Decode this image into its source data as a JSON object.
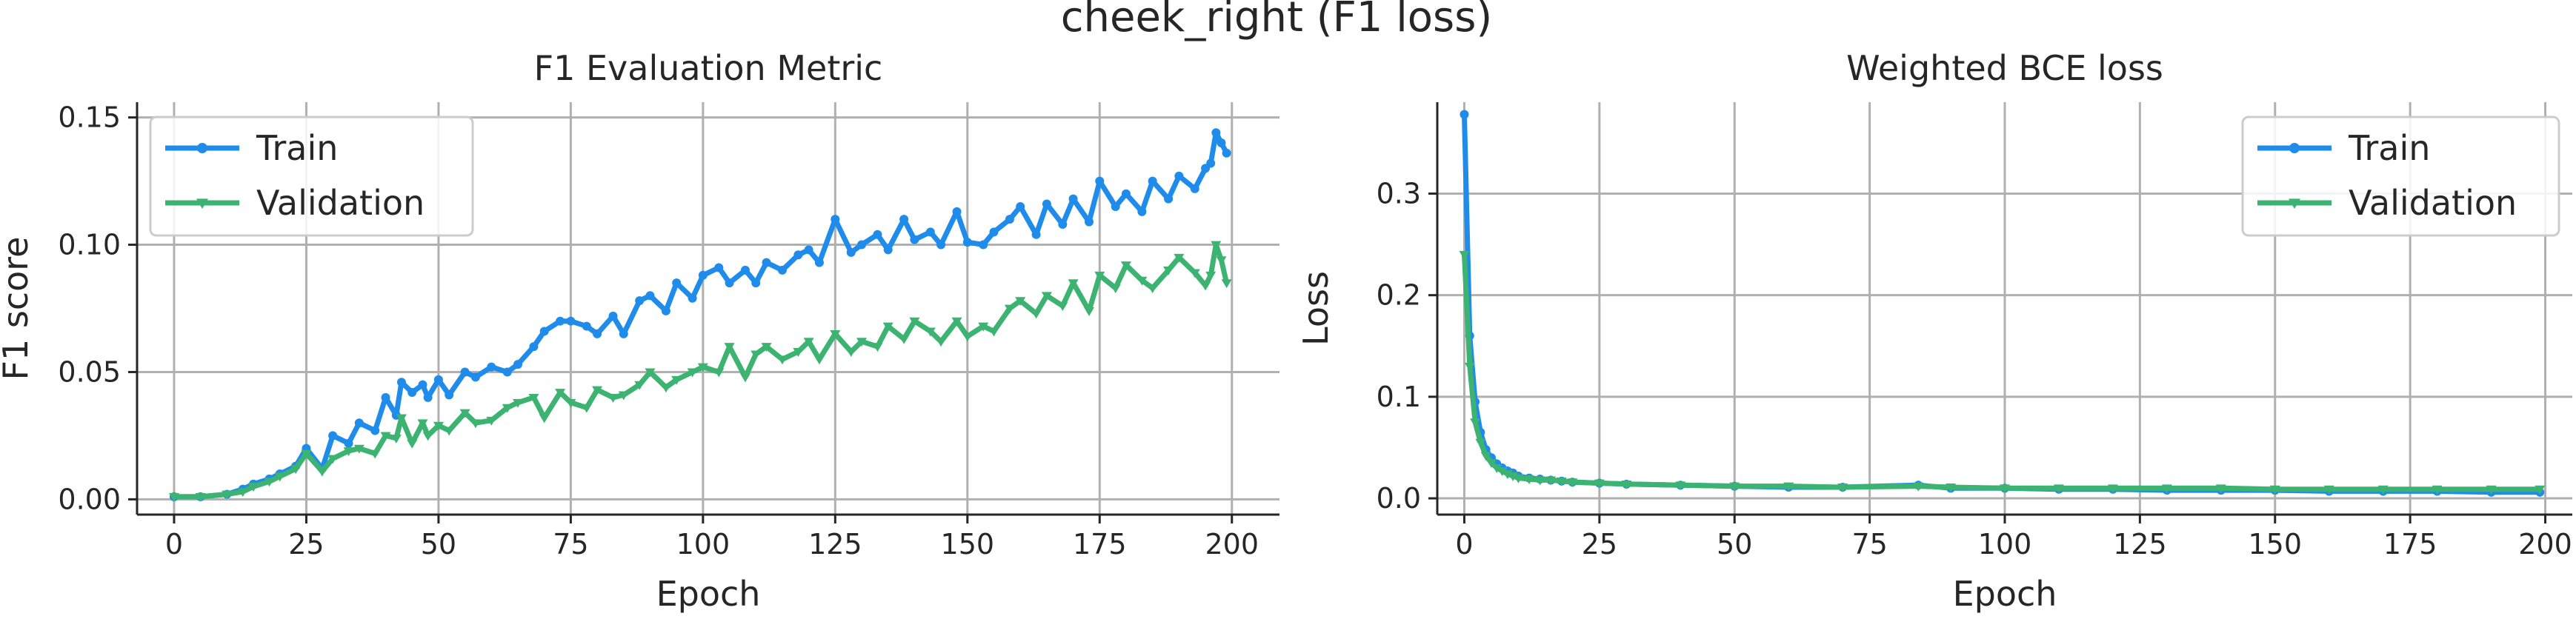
{
  "figure": {
    "suptitle": "cheek_right (F1 loss)"
  },
  "colors": {
    "train": "#1f8ceb",
    "validation": "#3cb371"
  },
  "chart_data": [
    {
      "type": "line",
      "title": "F1 Evaluation Metric",
      "xlabel": "Epoch",
      "ylabel": "F1 score",
      "xlim": [
        -7,
        209
      ],
      "ylim": [
        -0.006,
        0.156
      ],
      "xticks": [
        0,
        25,
        50,
        75,
        100,
        125,
        150,
        175,
        200
      ],
      "xtick_labels": [
        "0",
        "25",
        "50",
        "75",
        "100",
        "125",
        "150",
        "175",
        "200"
      ],
      "yticks": [
        0,
        0.05,
        0.1,
        0.15
      ],
      "ytick_labels": [
        "0.00",
        "0.05",
        "0.10",
        "0.15"
      ],
      "grid": true,
      "legend_loc": "upper-left",
      "series": [
        {
          "name": "Train",
          "marker": "circle",
          "x": [
            0,
            5,
            10,
            13,
            15,
            18,
            20,
            23,
            25,
            28,
            30,
            33,
            35,
            38,
            40,
            42,
            43,
            45,
            47,
            48,
            50,
            52,
            55,
            57,
            60,
            63,
            65,
            68,
            70,
            73,
            75,
            78,
            80,
            83,
            85,
            88,
            90,
            93,
            95,
            98,
            100,
            103,
            105,
            108,
            110,
            112,
            115,
            118,
            120,
            122,
            125,
            128,
            130,
            133,
            135,
            138,
            140,
            143,
            145,
            148,
            150,
            153,
            155,
            158,
            160,
            163,
            165,
            168,
            170,
            173,
            175,
            178,
            180,
            183,
            185,
            188,
            190,
            193,
            195,
            196,
            197,
            198,
            199
          ],
          "y": [
            0.001,
            0.001,
            0.002,
            0.004,
            0.006,
            0.008,
            0.01,
            0.013,
            0.02,
            0.012,
            0.025,
            0.022,
            0.03,
            0.027,
            0.04,
            0.033,
            0.046,
            0.042,
            0.045,
            0.04,
            0.047,
            0.041,
            0.05,
            0.048,
            0.052,
            0.05,
            0.053,
            0.06,
            0.066,
            0.07,
            0.07,
            0.068,
            0.065,
            0.072,
            0.065,
            0.078,
            0.08,
            0.074,
            0.085,
            0.079,
            0.088,
            0.091,
            0.085,
            0.09,
            0.085,
            0.093,
            0.09,
            0.096,
            0.098,
            0.093,
            0.11,
            0.097,
            0.1,
            0.104,
            0.098,
            0.11,
            0.102,
            0.105,
            0.1,
            0.113,
            0.101,
            0.1,
            0.105,
            0.11,
            0.115,
            0.104,
            0.116,
            0.108,
            0.118,
            0.109,
            0.125,
            0.115,
            0.12,
            0.113,
            0.125,
            0.118,
            0.127,
            0.122,
            0.13,
            0.132,
            0.144,
            0.14,
            0.136
          ]
        },
        {
          "name": "Validation",
          "marker": "tri_down",
          "x": [
            0,
            5,
            10,
            13,
            15,
            18,
            20,
            23,
            25,
            28,
            30,
            33,
            35,
            38,
            40,
            42,
            43,
            45,
            47,
            48,
            50,
            52,
            55,
            57,
            60,
            63,
            65,
            68,
            70,
            73,
            75,
            78,
            80,
            83,
            85,
            88,
            90,
            93,
            95,
            98,
            100,
            103,
            105,
            108,
            110,
            112,
            115,
            118,
            120,
            122,
            125,
            128,
            130,
            133,
            135,
            138,
            140,
            143,
            145,
            148,
            150,
            153,
            155,
            158,
            160,
            163,
            165,
            168,
            170,
            173,
            175,
            178,
            180,
            183,
            185,
            188,
            190,
            193,
            195,
            196,
            197,
            198,
            199
          ],
          "y": [
            0.001,
            0.001,
            0.002,
            0.003,
            0.005,
            0.007,
            0.009,
            0.012,
            0.018,
            0.011,
            0.016,
            0.019,
            0.02,
            0.018,
            0.025,
            0.024,
            0.032,
            0.022,
            0.03,
            0.025,
            0.029,
            0.027,
            0.034,
            0.03,
            0.031,
            0.036,
            0.038,
            0.04,
            0.032,
            0.042,
            0.038,
            0.036,
            0.043,
            0.04,
            0.041,
            0.045,
            0.05,
            0.044,
            0.047,
            0.05,
            0.052,
            0.05,
            0.06,
            0.048,
            0.057,
            0.06,
            0.055,
            0.058,
            0.062,
            0.055,
            0.065,
            0.058,
            0.062,
            0.06,
            0.068,
            0.063,
            0.07,
            0.066,
            0.062,
            0.07,
            0.064,
            0.068,
            0.066,
            0.075,
            0.078,
            0.073,
            0.08,
            0.076,
            0.085,
            0.074,
            0.088,
            0.083,
            0.092,
            0.086,
            0.083,
            0.09,
            0.095,
            0.089,
            0.084,
            0.088,
            0.1,
            0.094,
            0.085
          ]
        }
      ]
    },
    {
      "type": "line",
      "title": "Weighted BCE loss",
      "xlabel": "Epoch",
      "ylabel": "Loss",
      "xlim": [
        -5,
        205
      ],
      "ylim": [
        -0.016,
        0.39
      ],
      "xticks": [
        0,
        25,
        50,
        75,
        100,
        125,
        150,
        175,
        200
      ],
      "xtick_labels": [
        "0",
        "25",
        "50",
        "75",
        "100",
        "125",
        "150",
        "175",
        "200"
      ],
      "yticks": [
        0,
        0.1,
        0.2,
        0.3
      ],
      "ytick_labels": [
        "0.0",
        "0.1",
        "0.2",
        "0.3"
      ],
      "grid": true,
      "legend_loc": "upper-right",
      "series": [
        {
          "name": "Train",
          "marker": "circle",
          "x": [
            0,
            1,
            2,
            3,
            4,
            5,
            6,
            7,
            8,
            9,
            10,
            12,
            14,
            16,
            18,
            20,
            25,
            30,
            40,
            50,
            60,
            70,
            84,
            90,
            100,
            110,
            120,
            130,
            140,
            150,
            160,
            170,
            180,
            190,
            199
          ],
          "y": [
            0.378,
            0.16,
            0.095,
            0.065,
            0.048,
            0.04,
            0.034,
            0.03,
            0.027,
            0.025,
            0.022,
            0.02,
            0.019,
            0.018,
            0.017,
            0.016,
            0.015,
            0.014,
            0.013,
            0.012,
            0.011,
            0.011,
            0.013,
            0.01,
            0.01,
            0.009,
            0.009,
            0.008,
            0.008,
            0.008,
            0.007,
            0.007,
            0.007,
            0.006,
            0.006
          ]
        },
        {
          "name": "Validation",
          "marker": "tri_down",
          "x": [
            0,
            1,
            2,
            3,
            4,
            5,
            6,
            7,
            8,
            9,
            10,
            12,
            14,
            16,
            18,
            20,
            25,
            30,
            40,
            50,
            60,
            70,
            84,
            90,
            100,
            110,
            120,
            130,
            140,
            150,
            160,
            170,
            180,
            190,
            199
          ],
          "y": [
            0.24,
            0.13,
            0.075,
            0.055,
            0.042,
            0.035,
            0.03,
            0.027,
            0.024,
            0.022,
            0.02,
            0.019,
            0.018,
            0.018,
            0.017,
            0.016,
            0.015,
            0.014,
            0.013,
            0.012,
            0.012,
            0.011,
            0.012,
            0.011,
            0.01,
            0.01,
            0.01,
            0.01,
            0.01,
            0.009,
            0.009,
            0.009,
            0.009,
            0.009,
            0.009
          ]
        }
      ]
    }
  ]
}
